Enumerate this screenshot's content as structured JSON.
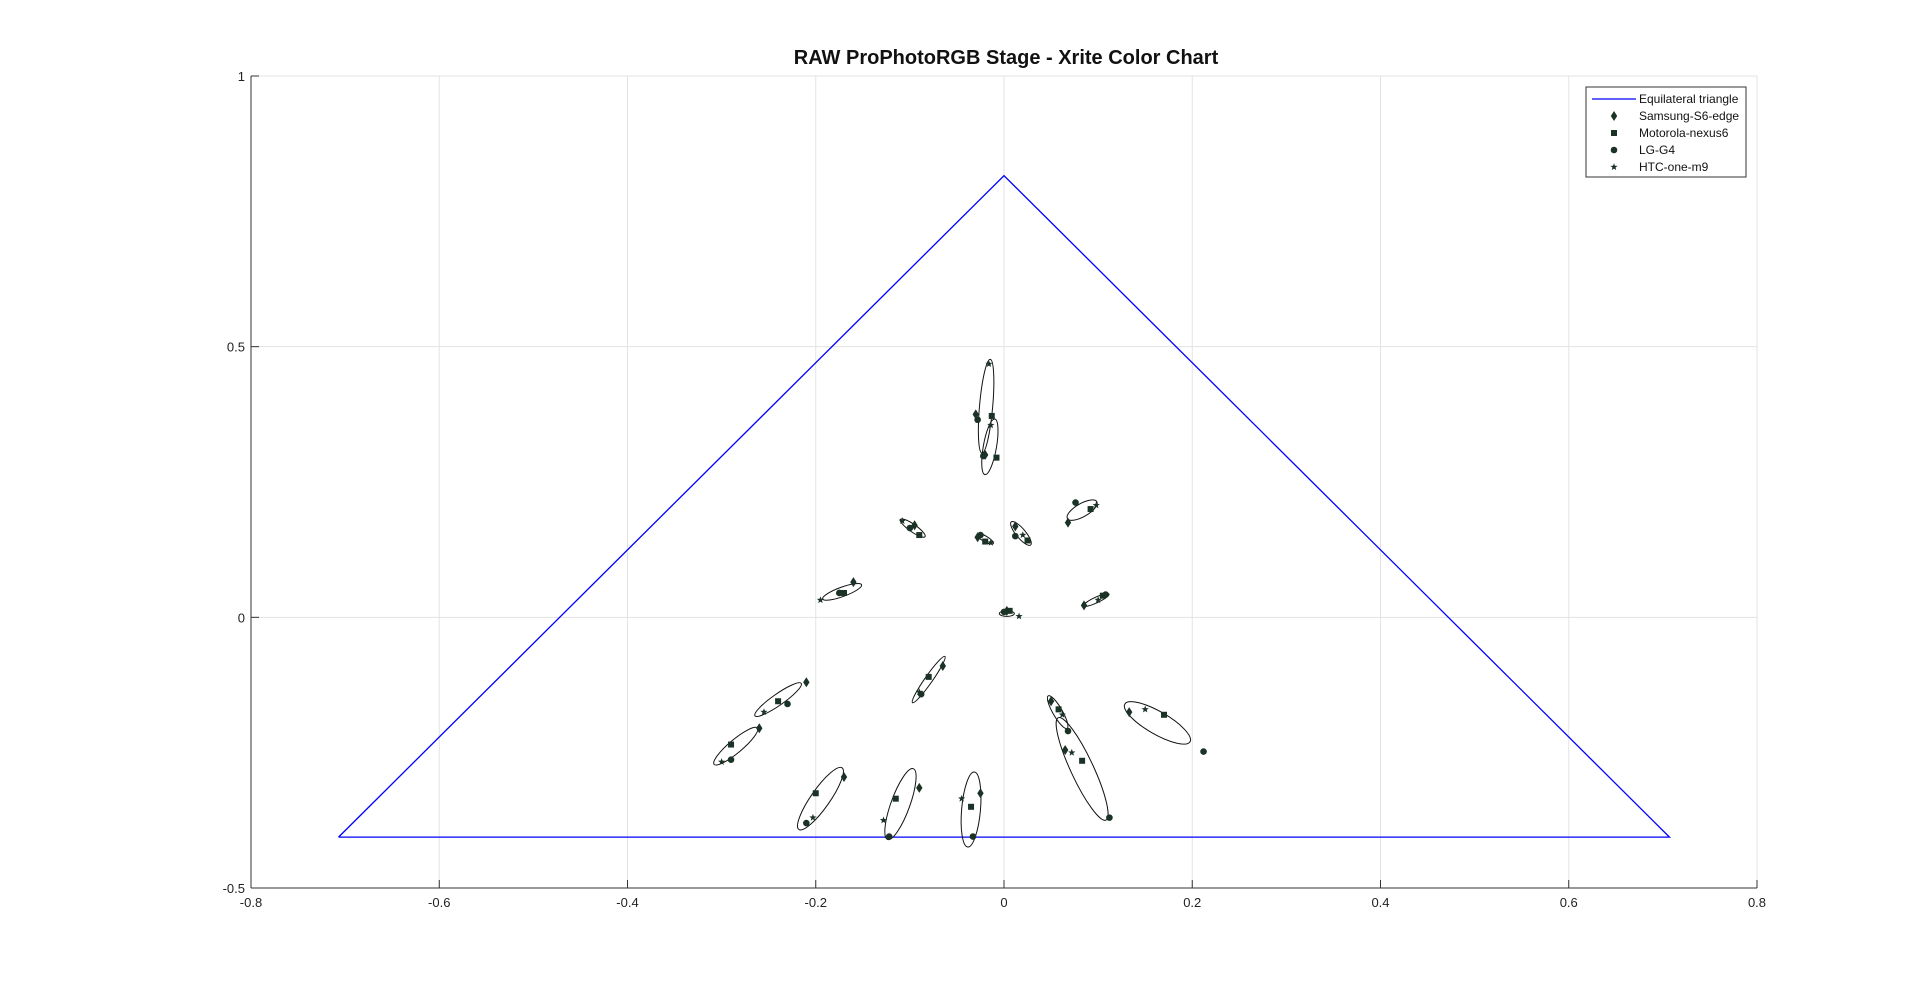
{
  "chart_data": {
    "type": "scatter",
    "title": "RAW ProPhotoRGB Stage - Xrite Color Chart",
    "xlabel": "",
    "ylabel": "",
    "xlim": [
      -0.8,
      0.8
    ],
    "ylim": [
      -0.5,
      1
    ],
    "grid": true,
    "legend_position": "top-right",
    "x_ticks": [
      -0.8,
      -0.6,
      -0.4,
      -0.2,
      0,
      0.2,
      0.4,
      0.6,
      0.8
    ],
    "x_tick_labels": [
      "-0.8",
      "-0.6",
      "-0.4",
      "-0.2",
      "0",
      "0.2",
      "0.4",
      "0.6",
      "0.8"
    ],
    "y_ticks": [
      -0.5,
      0,
      0.5,
      1
    ],
    "y_tick_labels": [
      "-0.5",
      "0",
      "0.5",
      "1"
    ],
    "triangle": {
      "name": "Equilateral triangle",
      "color": "#0000ff",
      "points": [
        [
          -0.707,
          -0.406
        ],
        [
          0,
          0.816
        ],
        [
          0.707,
          -0.406
        ],
        [
          -0.707,
          -0.406
        ]
      ]
    },
    "series": [
      {
        "name": "Samsung-S6-edge",
        "marker": "diamond",
        "color": "#1b3326",
        "points": [
          [
            -0.03,
            0.375
          ],
          [
            -0.02,
            0.3
          ],
          [
            -0.095,
            0.17
          ],
          [
            -0.028,
            0.148
          ],
          [
            0.012,
            0.168
          ],
          [
            0.068,
            0.175
          ],
          [
            -0.16,
            0.065
          ],
          [
            0.003,
            0.012
          ],
          [
            0.085,
            0.022
          ],
          [
            -0.065,
            -0.09
          ],
          [
            -0.21,
            -0.12
          ],
          [
            -0.26,
            -0.205
          ],
          [
            0.05,
            -0.155
          ],
          [
            0.133,
            -0.175
          ],
          [
            0.065,
            -0.245
          ],
          [
            -0.17,
            -0.295
          ],
          [
            -0.09,
            -0.315
          ],
          [
            -0.025,
            -0.325
          ]
        ]
      },
      {
        "name": "Motorola-nexus6",
        "marker": "square",
        "color": "#1b3326",
        "points": [
          [
            -0.013,
            0.372
          ],
          [
            -0.008,
            0.295
          ],
          [
            -0.09,
            0.152
          ],
          [
            -0.02,
            0.14
          ],
          [
            0.025,
            0.142
          ],
          [
            0.092,
            0.2
          ],
          [
            -0.17,
            0.045
          ],
          [
            0.006,
            0.012
          ],
          [
            0.105,
            0.04
          ],
          [
            -0.08,
            -0.11
          ],
          [
            -0.24,
            -0.155
          ],
          [
            -0.29,
            -0.235
          ],
          [
            0.058,
            -0.17
          ],
          [
            0.17,
            -0.18
          ],
          [
            0.083,
            -0.265
          ],
          [
            -0.2,
            -0.325
          ],
          [
            -0.115,
            -0.335
          ],
          [
            -0.035,
            -0.35
          ]
        ]
      },
      {
        "name": "LG-G4",
        "marker": "circle",
        "color": "#1b3326",
        "points": [
          [
            -0.028,
            0.365
          ],
          [
            -0.022,
            0.298
          ],
          [
            -0.1,
            0.165
          ],
          [
            -0.025,
            0.152
          ],
          [
            0.012,
            0.15
          ],
          [
            0.076,
            0.212
          ],
          [
            -0.175,
            0.045
          ],
          [
            0,
            0.01
          ],
          [
            0.108,
            0.042
          ],
          [
            -0.088,
            -0.142
          ],
          [
            -0.23,
            -0.16
          ],
          [
            -0.29,
            -0.263
          ],
          [
            0.068,
            -0.21
          ],
          [
            0.212,
            -0.248
          ],
          [
            0.112,
            -0.37
          ],
          [
            -0.21,
            -0.38
          ],
          [
            -0.122,
            -0.405
          ],
          [
            -0.033,
            -0.405
          ]
        ]
      },
      {
        "name": "HTC-one-m9",
        "marker": "star",
        "color": "#1b3326",
        "points": [
          [
            -0.016,
            0.468
          ],
          [
            -0.014,
            0.355
          ],
          [
            -0.108,
            0.178
          ],
          [
            -0.014,
            0.138
          ],
          [
            0.02,
            0.152
          ],
          [
            0.098,
            0.207
          ],
          [
            -0.195,
            0.032
          ],
          [
            0.016,
            0.002
          ],
          [
            0.1,
            0.032
          ],
          [
            -0.09,
            -0.138
          ],
          [
            -0.255,
            -0.175
          ],
          [
            -0.3,
            -0.267
          ],
          [
            0.062,
            -0.18
          ],
          [
            0.15,
            -0.17
          ],
          [
            0.072,
            -0.25
          ],
          [
            -0.203,
            -0.37
          ],
          [
            -0.128,
            -0.375
          ],
          [
            -0.045,
            -0.335
          ]
        ]
      }
    ],
    "ellipses": [
      {
        "cx": -0.019,
        "cy": 0.39,
        "rx": 0.05,
        "ry": 0.007,
        "angle": 85
      },
      {
        "cx": -0.015,
        "cy": 0.315,
        "rx": 0.03,
        "ry": 0.007,
        "angle": 80
      },
      {
        "cx": -0.097,
        "cy": 0.165,
        "rx": 0.016,
        "ry": 0.004,
        "angle": -35
      },
      {
        "cx": -0.02,
        "cy": 0.145,
        "rx": 0.01,
        "ry": 0.003,
        "angle": -30
      },
      {
        "cx": 0.018,
        "cy": 0.155,
        "rx": 0.016,
        "ry": 0.005,
        "angle": -50
      },
      {
        "cx": 0.083,
        "cy": 0.198,
        "rx": 0.018,
        "ry": 0.007,
        "angle": 30
      },
      {
        "cx": -0.172,
        "cy": 0.047,
        "rx": 0.022,
        "ry": 0.005,
        "angle": 20
      },
      {
        "cx": 0.003,
        "cy": 0.007,
        "rx": 0.008,
        "ry": 0.003,
        "angle": 0
      },
      {
        "cx": 0.098,
        "cy": 0.032,
        "rx": 0.015,
        "ry": 0.003,
        "angle": 25
      },
      {
        "cx": -0.08,
        "cy": -0.115,
        "rx": 0.03,
        "ry": 0.004,
        "angle": 55
      },
      {
        "cx": -0.24,
        "cy": -0.152,
        "rx": 0.03,
        "ry": 0.006,
        "angle": 35
      },
      {
        "cx": -0.285,
        "cy": -0.238,
        "rx": 0.03,
        "ry": 0.007,
        "angle": 40
      },
      {
        "cx": 0.057,
        "cy": -0.175,
        "rx": 0.02,
        "ry": 0.005,
        "angle": -60
      },
      {
        "cx": 0.163,
        "cy": -0.195,
        "rx": 0.04,
        "ry": 0.012,
        "angle": -30
      },
      {
        "cx": 0.083,
        "cy": -0.28,
        "rx": 0.06,
        "ry": 0.012,
        "angle": -65
      },
      {
        "cx": -0.195,
        "cy": -0.335,
        "rx": 0.04,
        "ry": 0.01,
        "angle": 55
      },
      {
        "cx": -0.11,
        "cy": -0.345,
        "rx": 0.04,
        "ry": 0.01,
        "angle": 70
      },
      {
        "cx": -0.035,
        "cy": -0.355,
        "rx": 0.04,
        "ry": 0.01,
        "angle": 85
      }
    ]
  }
}
